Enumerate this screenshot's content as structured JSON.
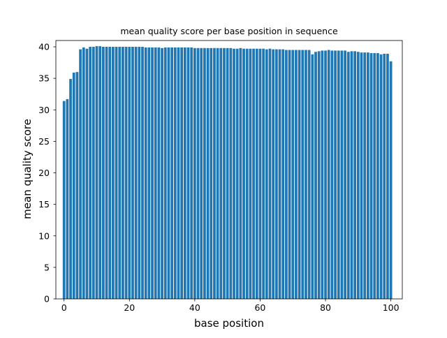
{
  "chart_data": {
    "type": "bar",
    "title": "mean quality score per base position in sequence",
    "xlabel": "base position",
    "ylabel": "mean quality score",
    "xlim": [
      -2.5,
      103.5
    ],
    "ylim": [
      0,
      41
    ],
    "xticks": [
      0,
      20,
      40,
      60,
      80,
      100
    ],
    "yticks": [
      0,
      5,
      10,
      15,
      20,
      25,
      30,
      35,
      40
    ],
    "grid": false,
    "bar_color": "#1f77b4",
    "x": [
      0,
      1,
      2,
      3,
      4,
      5,
      6,
      7,
      8,
      9,
      10,
      11,
      12,
      13,
      14,
      15,
      16,
      17,
      18,
      19,
      20,
      21,
      22,
      23,
      24,
      25,
      26,
      27,
      28,
      29,
      30,
      31,
      32,
      33,
      34,
      35,
      36,
      37,
      38,
      39,
      40,
      41,
      42,
      43,
      44,
      45,
      46,
      47,
      48,
      49,
      50,
      51,
      52,
      53,
      54,
      55,
      56,
      57,
      58,
      59,
      60,
      61,
      62,
      63,
      64,
      65,
      66,
      67,
      68,
      69,
      70,
      71,
      72,
      73,
      74,
      75,
      76,
      77,
      78,
      79,
      80,
      81,
      82,
      83,
      84,
      85,
      86,
      87,
      88,
      89,
      90,
      91,
      92,
      93,
      94,
      95,
      96,
      97,
      98,
      99,
      100
    ],
    "values": [
      31.4,
      31.7,
      34.9,
      35.9,
      36.0,
      39.6,
      39.9,
      39.7,
      40.0,
      40.0,
      40.1,
      40.1,
      40.0,
      40.0,
      40.0,
      40.0,
      40.0,
      40.0,
      40.0,
      40.0,
      40.0,
      40.0,
      40.0,
      40.0,
      40.0,
      39.9,
      39.9,
      39.9,
      39.9,
      39.9,
      39.8,
      39.9,
      39.9,
      39.9,
      39.9,
      39.9,
      39.9,
      39.9,
      39.9,
      39.9,
      39.8,
      39.8,
      39.8,
      39.8,
      39.8,
      39.8,
      39.8,
      39.8,
      39.8,
      39.8,
      39.8,
      39.8,
      39.7,
      39.7,
      39.8,
      39.7,
      39.7,
      39.7,
      39.7,
      39.7,
      39.7,
      39.7,
      39.6,
      39.7,
      39.6,
      39.6,
      39.6,
      39.6,
      39.5,
      39.5,
      39.5,
      39.5,
      39.5,
      39.5,
      39.5,
      39.5,
      38.8,
      39.2,
      39.3,
      39.4,
      39.4,
      39.5,
      39.4,
      39.4,
      39.4,
      39.4,
      39.4,
      39.2,
      39.3,
      39.3,
      39.2,
      39.1,
      39.1,
      39.1,
      39.0,
      39.0,
      39.0,
      38.8,
      38.9,
      38.9,
      37.7
    ]
  }
}
